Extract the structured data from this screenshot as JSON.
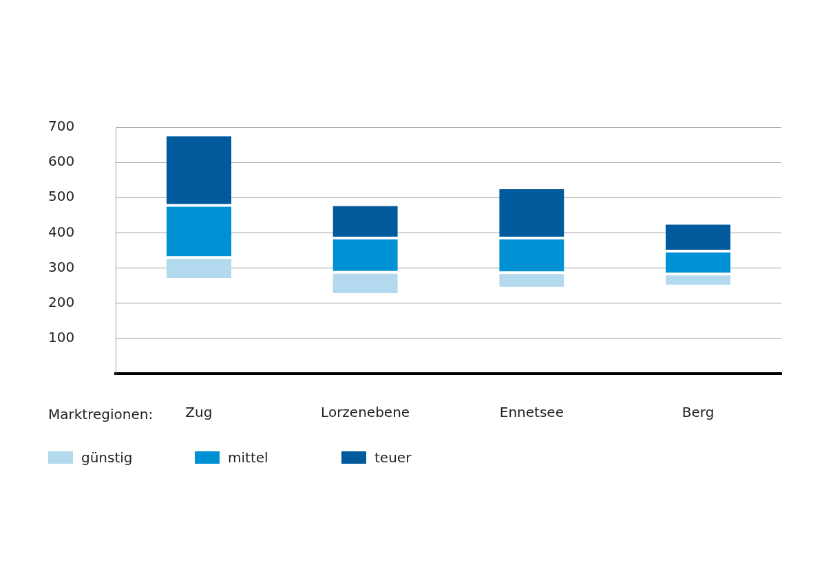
{
  "chart_data": {
    "type": "bar",
    "x_label": "Marktregionen:",
    "categories": [
      "Zug",
      "Lorzenebene",
      "Ennetsee",
      "Berg"
    ],
    "series": [
      {
        "name": "günstig",
        "color": "#b3d9ee",
        "values": [
          [
            268,
            330
          ],
          [
            225,
            288
          ],
          [
            243,
            287
          ],
          [
            249,
            283
          ]
        ]
      },
      {
        "name": "mittel",
        "color": "#0090d4",
        "values": [
          [
            330,
            478
          ],
          [
            288,
            385
          ],
          [
            287,
            385
          ],
          [
            283,
            348
          ]
        ]
      },
      {
        "name": "teuer",
        "color": "#005a9c",
        "values": [
          [
            478,
            678
          ],
          [
            385,
            480
          ],
          [
            385,
            528
          ],
          [
            348,
            427
          ]
        ]
      }
    ],
    "ylim": [
      0,
      700
    ],
    "yticks": [
      100,
      200,
      300,
      400,
      500,
      600,
      700
    ],
    "grid": true,
    "legend": "bottom"
  }
}
